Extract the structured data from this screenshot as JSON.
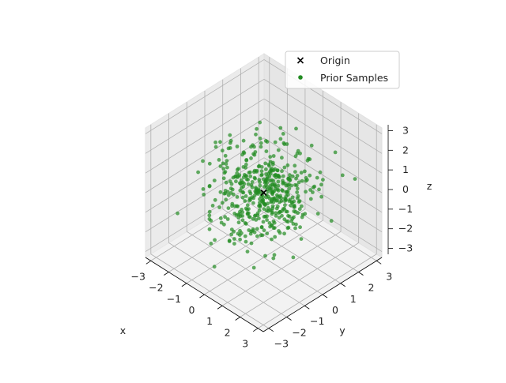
{
  "chart_data": {
    "type": "scatter3d",
    "title": "",
    "xlabel": "x",
    "ylabel": "y",
    "zlabel": "z",
    "xlim": [
      -3.3,
      3.3
    ],
    "ylim": [
      -3.3,
      3.3
    ],
    "zlim": [
      -3.3,
      3.3
    ],
    "ticks": {
      "x": [
        "−3",
        "−2",
        "−1",
        "0",
        "1",
        "2",
        "3"
      ],
      "y": [
        "−3",
        "−2",
        "−1",
        "0",
        "1",
        "2",
        "3"
      ],
      "z": [
        "−3",
        "−2",
        "−1",
        "0",
        "1",
        "2",
        "3"
      ]
    },
    "grid": true,
    "legend": {
      "placement": "upper right",
      "entries": [
        {
          "label": "Origin",
          "marker": "x",
          "color": "#000000"
        },
        {
          "label": "Prior Samples",
          "marker": "o",
          "color": "#228b22"
        }
      ]
    },
    "series": [
      {
        "name": "Origin",
        "marker": "x",
        "color": "#000000",
        "points": [
          [
            0,
            0,
            0
          ]
        ]
      },
      {
        "name": "Prior Samples",
        "marker": "o",
        "color": "#228b22",
        "alpha": 0.7,
        "distribution": "standard normal (x, y, z independent)",
        "count": 500,
        "points": [
          [
            -1.2,
            0.8,
            2.1
          ],
          [
            0.5,
            -1.9,
            2.6
          ],
          [
            2.3,
            1.7,
            2.4
          ],
          [
            -0.3,
            0.2,
            -0.4
          ],
          [
            1.1,
            -0.6,
            0.9
          ],
          [
            -2.1,
            -0.4,
            0.7
          ],
          [
            0.9,
            2.4,
            -0.2
          ],
          [
            -0.7,
            -1.1,
            -1.9
          ],
          [
            1.8,
            0.3,
            -1.5
          ],
          [
            -1.5,
            1.9,
            -0.8
          ],
          [
            0.2,
            -0.3,
            1.6
          ],
          [
            2.6,
            -1.2,
            0.4
          ],
          [
            -0.9,
            2.7,
            1.2
          ],
          [
            1.4,
            1.1,
            1.9
          ],
          [
            -2.4,
            1.3,
            -0.1
          ],
          [
            0.6,
            -2.5,
            -0.7
          ],
          [
            -0.1,
            0.9,
            0.3
          ],
          [
            1.9,
            -1.8,
            -1.1
          ],
          [
            -1.8,
            -1.6,
            1.5
          ],
          [
            0.3,
            1.5,
            -2.3
          ],
          [
            2.9,
            2.2,
            1.1
          ],
          [
            -2.8,
            0.1,
            0.9
          ],
          [
            0.8,
            -0.2,
            -2.6
          ],
          [
            -0.5,
            -2.2,
            0.6
          ],
          [
            1.6,
            2.8,
            0.2
          ],
          [
            -1.3,
            -0.7,
            -0.3
          ]
        ]
      }
    ]
  }
}
